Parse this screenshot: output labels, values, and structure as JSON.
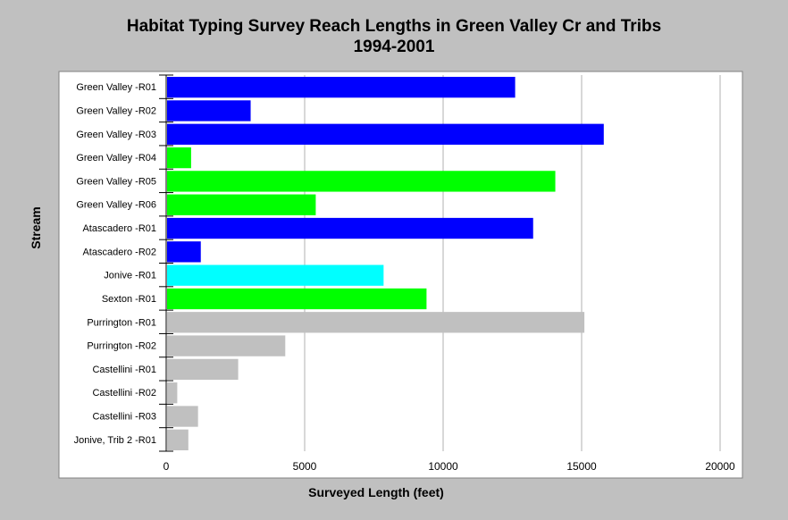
{
  "chart_data": {
    "type": "bar",
    "orientation": "horizontal",
    "title": "Habitat Typing Survey Reach Lengths in Green Valley Cr and Tribs",
    "subtitle": "1994-2001",
    "xlabel": "Surveyed Length (feet)",
    "ylabel": "Stream",
    "xlim": [
      0,
      20000
    ],
    "xticks": [
      "0",
      "5000",
      "10000",
      "15000",
      "20000"
    ],
    "grid": "vertical",
    "categories": [
      "Green Valley -R01",
      "Green Valley -R02",
      "Green Valley -R03",
      "Green Valley -R04",
      "Green Valley -R05",
      "Green Valley -R06",
      "Atascadero -R01",
      "Atascadero -R02",
      "Jonive -R01",
      "Sexton -R01",
      "Purrington -R01",
      "Purrington -R02",
      "Castellini -R01",
      "Castellini -R02",
      "Castellini -R03",
      "Jonive, Trib 2 -R01"
    ],
    "values": [
      12600,
      3050,
      15800,
      900,
      14050,
      5400,
      13250,
      1250,
      7850,
      9400,
      15100,
      4300,
      2600,
      400,
      1150,
      800
    ],
    "colors": [
      "#0000ff",
      "#0000ff",
      "#0000ff",
      "#00ff00",
      "#00ff00",
      "#00ff00",
      "#0000ff",
      "#0000ff",
      "#00ffff",
      "#00ff00",
      "#c0c0c0",
      "#c0c0c0",
      "#c0c0c0",
      "#c0c0c0",
      "#c0c0c0",
      "#c0c0c0"
    ]
  }
}
